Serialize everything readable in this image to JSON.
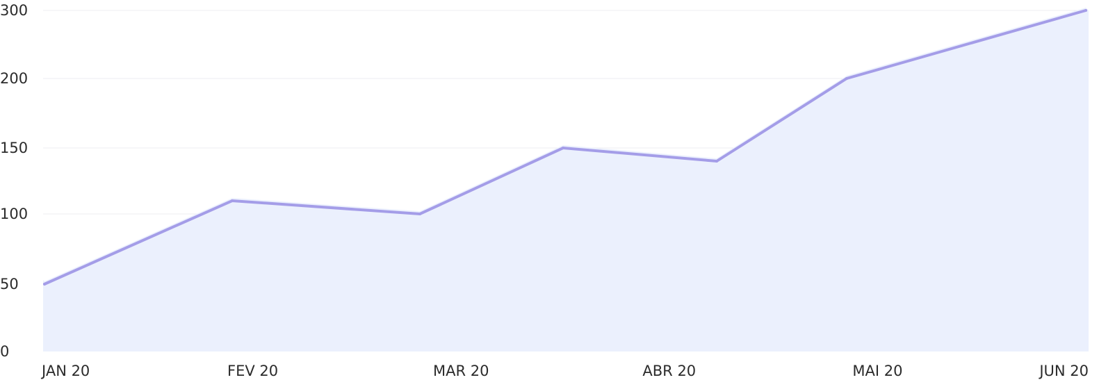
{
  "chart_data": {
    "type": "area",
    "title": "",
    "xlabel": "",
    "ylabel": "",
    "categories": [
      "JAN 20",
      "FEV 20",
      "MAR 20",
      "ABR 20",
      "MAI 20",
      "JUN 20"
    ],
    "y_ticks": [
      "0",
      "50",
      "100",
      "150",
      "200",
      "300"
    ],
    "grid": true,
    "legend": "none",
    "series": [
      {
        "points": [
          {
            "x": "JAN 20",
            "y": 50
          },
          {
            "x": "FEV 20",
            "y": 110
          },
          {
            "x": "MAR 20",
            "y": 100
          },
          {
            "x": "ABR 20",
            "y": 150
          },
          {
            "x": "ABR 20",
            "y": 140
          },
          {
            "x": "MAI 20",
            "y": 200
          },
          {
            "x": "JUN 20",
            "y": 300
          }
        ]
      }
    ],
    "colors": {
      "line": "#a49de8",
      "fill": "#ebf0fd",
      "grid": "#ececf1",
      "text": "#2b2b2b"
    }
  }
}
